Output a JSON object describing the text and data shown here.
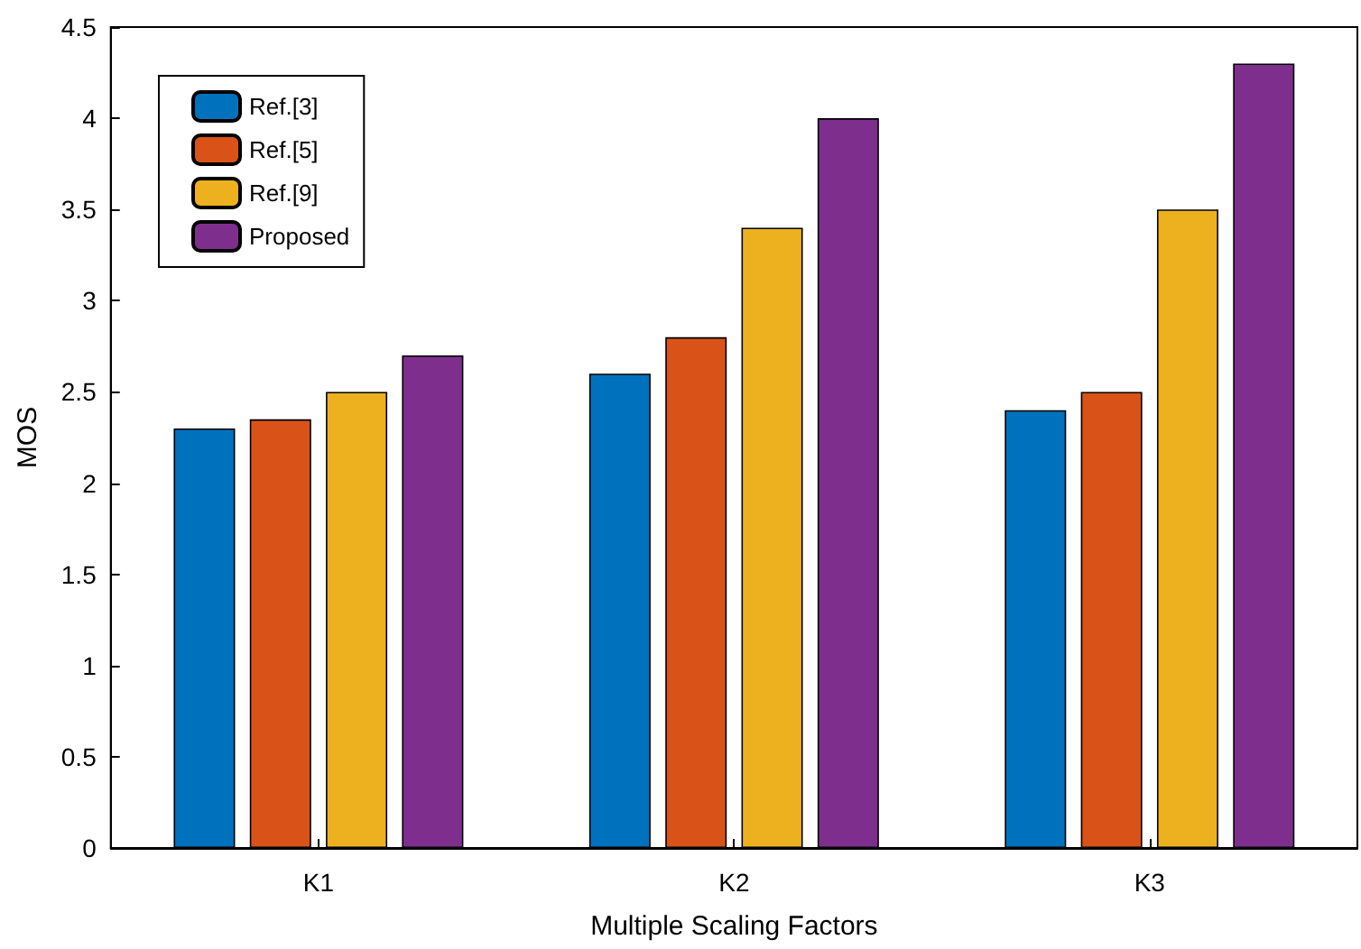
{
  "chart_data": {
    "type": "bar",
    "xlabel": "Multiple Scaling Factors",
    "ylabel": "MOS",
    "categories": [
      "K1",
      "K2",
      "K3"
    ],
    "series": [
      {
        "name": "Ref.[3]",
        "color": "#0072bd",
        "values": [
          2.3,
          2.6,
          2.4
        ]
      },
      {
        "name": "Ref.[5]",
        "color": "#d95319",
        "values": [
          2.35,
          2.8,
          2.5
        ]
      },
      {
        "name": "Ref.[9]",
        "color": "#edb120",
        "values": [
          2.5,
          3.4,
          3.5
        ]
      },
      {
        "name": "Proposed",
        "color": "#7e2f8e",
        "values": [
          2.7,
          4.0,
          4.3
        ]
      }
    ],
    "ylim": [
      0,
      4.5
    ],
    "yticks": [
      0,
      0.5,
      1,
      1.5,
      2,
      2.5,
      3,
      3.5,
      4,
      4.5
    ],
    "grid": false,
    "legend": "top left"
  }
}
